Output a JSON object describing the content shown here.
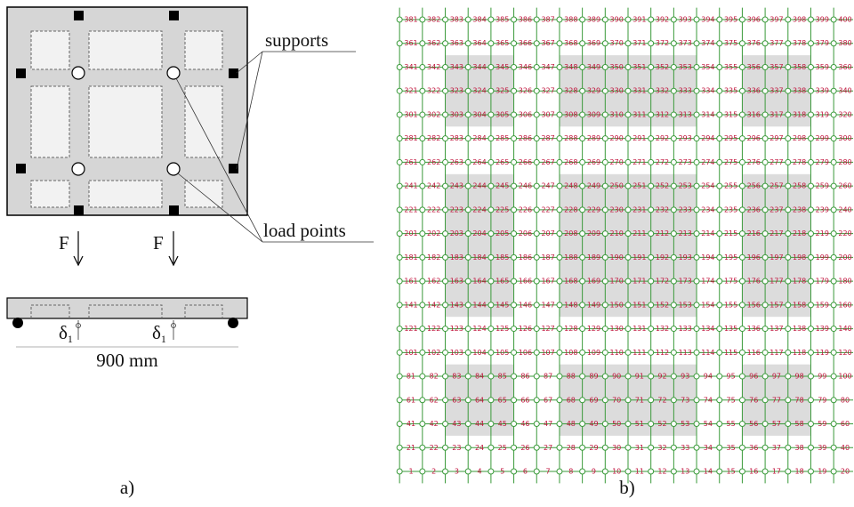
{
  "panel_a": {
    "label": "a)",
    "supports_label": "supports",
    "load_points_label": "load points",
    "force_labels": [
      "F",
      "F"
    ],
    "deflection_labels": [
      {
        "symbol": "δ",
        "subscript": "1"
      },
      {
        "symbol": "δ",
        "subscript": "1"
      }
    ],
    "span_label": "900 mm"
  },
  "panel_b": {
    "label": "b)",
    "node_labels": [
      1,
      2,
      3,
      4,
      5,
      6,
      7,
      8,
      9,
      10,
      11,
      12,
      13,
      14,
      15,
      16,
      17,
      18,
      19,
      20,
      21,
      22,
      23,
      24,
      25,
      26,
      27,
      28,
      29,
      30,
      31,
      32,
      33,
      34,
      35,
      36,
      37,
      38,
      39,
      40,
      41,
      42,
      43,
      44,
      45,
      46,
      47,
      48,
      49,
      50,
      51,
      52,
      53,
      54,
      55,
      56,
      57,
      58,
      59,
      60,
      61,
      62,
      63,
      64,
      65,
      66,
      67,
      68,
      69,
      70,
      71,
      72,
      73,
      74,
      75,
      76,
      77,
      78,
      79,
      80,
      81,
      82,
      83,
      84,
      85,
      86,
      87,
      88,
      89,
      90,
      91,
      92,
      93,
      94,
      95,
      96,
      97,
      98,
      99,
      100,
      101,
      102,
      103,
      104,
      105,
      106,
      107,
      108,
      109,
      110,
      111,
      112,
      113,
      114,
      115,
      116,
      117,
      118,
      119,
      120,
      121,
      122,
      123,
      124,
      125,
      126,
      127,
      128,
      129,
      130,
      131,
      132,
      133,
      134,
      135,
      136,
      137,
      138,
      139,
      140,
      141,
      142,
      143,
      144,
      145,
      146,
      147,
      148,
      149,
      150,
      151,
      152,
      153,
      154,
      155,
      156,
      157,
      158,
      159,
      160,
      161,
      162,
      163,
      164,
      165,
      166,
      167,
      168,
      169,
      170,
      171,
      172,
      173,
      174,
      175,
      176,
      177,
      178,
      179,
      180,
      181,
      182,
      183,
      184,
      185,
      186,
      187,
      188,
      189,
      190,
      191,
      192,
      193,
      194,
      195,
      196,
      197,
      198,
      199,
      200,
      201,
      202,
      203,
      204,
      205,
      206,
      207,
      208,
      209,
      210,
      211,
      212,
      213,
      214,
      215,
      216,
      217,
      218,
      219,
      220,
      221,
      222,
      223,
      224,
      225,
      226,
      227,
      228,
      229,
      230,
      231,
      232,
      233,
      234,
      235,
      236,
      237,
      238,
      239,
      240,
      241,
      242,
      243,
      244,
      245,
      246,
      247,
      248,
      249,
      250,
      251,
      252,
      253,
      254,
      255,
      256,
      257,
      258,
      259,
      260,
      261,
      262,
      263,
      264,
      265,
      266,
      267,
      268,
      269,
      270,
      271,
      272,
      273,
      274,
      275,
      276,
      277,
      278,
      279,
      280,
      281,
      282,
      283,
      284,
      285,
      286,
      287,
      288,
      289,
      290,
      291,
      292,
      293,
      294,
      295,
      296,
      297,
      298,
      299,
      300,
      301,
      302,
      303,
      304,
      305,
      306,
      307,
      308,
      309,
      310,
      311,
      312,
      313,
      314,
      315,
      316,
      317,
      318,
      319,
      320,
      321,
      322,
      323,
      324,
      325,
      326,
      327,
      328,
      329,
      330,
      331,
      332,
      333,
      334,
      335,
      336,
      337,
      338,
      339,
      340,
      341,
      342,
      343,
      344,
      345,
      346,
      347,
      348,
      349,
      350,
      351,
      352,
      353,
      354,
      355,
      356,
      357,
      358,
      359,
      360,
      361,
      362,
      363,
      364,
      365,
      366,
      367,
      368,
      369,
      370,
      371,
      372,
      373,
      374,
      375,
      376,
      377,
      378,
      379,
      380,
      381,
      382,
      383,
      384,
      385,
      386,
      387,
      388,
      389,
      390,
      391,
      392,
      393,
      394,
      395,
      396,
      397,
      398,
      399,
      400
    ]
  }
}
